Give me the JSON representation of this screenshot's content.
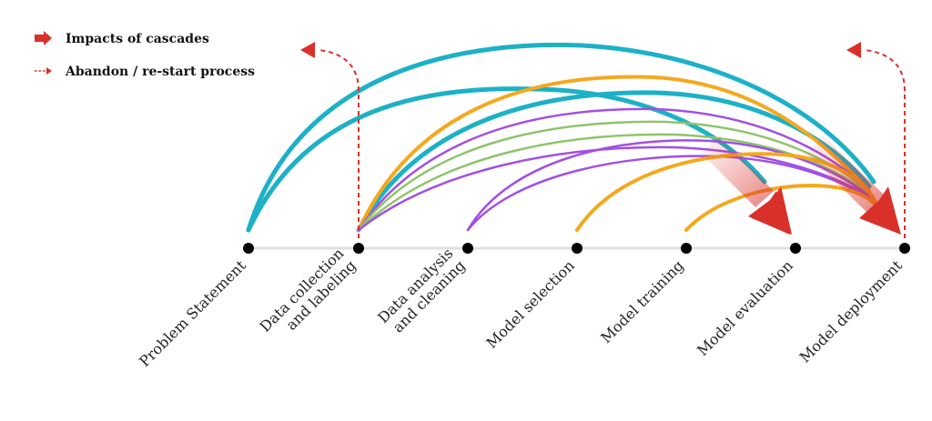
{
  "legend": {
    "impacts_label": "Impacts of cascades",
    "abandon_label": "Abandon / re-start process"
  },
  "stages": [
    {
      "id": "problem",
      "lines": [
        "Problem Statement"
      ]
    },
    {
      "id": "collection",
      "lines": [
        "Data collection",
        "and labeling"
      ]
    },
    {
      "id": "analysis",
      "lines": [
        "Data analysis",
        "and cleaning"
      ]
    },
    {
      "id": "selection",
      "lines": [
        "Model selection"
      ]
    },
    {
      "id": "training",
      "lines": [
        "Model training"
      ]
    },
    {
      "id": "evaluation",
      "lines": [
        "Model evaluation"
      ]
    },
    {
      "id": "deployment",
      "lines": [
        "Model deployment"
      ]
    }
  ],
  "colors": {
    "teal": "#1cb1c6",
    "orange": "#f5a81c",
    "purple": "#a24fe6",
    "green": "#8ec46a",
    "red": "#d9302a",
    "axis": "#e0e0e0",
    "node": "#000000"
  },
  "cascades": [
    {
      "from": "problem",
      "to": "deployment",
      "color": "teal"
    },
    {
      "from": "problem",
      "to": "evaluation",
      "color": "teal"
    },
    {
      "from": "collection",
      "to": "deployment",
      "color": "teal"
    },
    {
      "from": "collection",
      "to": "deployment",
      "color": "orange"
    },
    {
      "from": "collection",
      "to": "deployment",
      "color": "purple"
    },
    {
      "from": "collection",
      "to": "deployment",
      "color": "green"
    },
    {
      "from": "collection",
      "to": "deployment",
      "color": "green"
    },
    {
      "from": "collection",
      "to": "deployment",
      "color": "purple"
    },
    {
      "from": "analysis",
      "to": "deployment",
      "color": "purple"
    },
    {
      "from": "analysis",
      "to": "deployment",
      "color": "purple"
    },
    {
      "from": "selection",
      "to": "deployment",
      "color": "orange"
    },
    {
      "from": "training",
      "to": "deployment",
      "color": "orange"
    }
  ],
  "restarts": [
    {
      "from": "collection"
    },
    {
      "from": "deployment"
    }
  ]
}
